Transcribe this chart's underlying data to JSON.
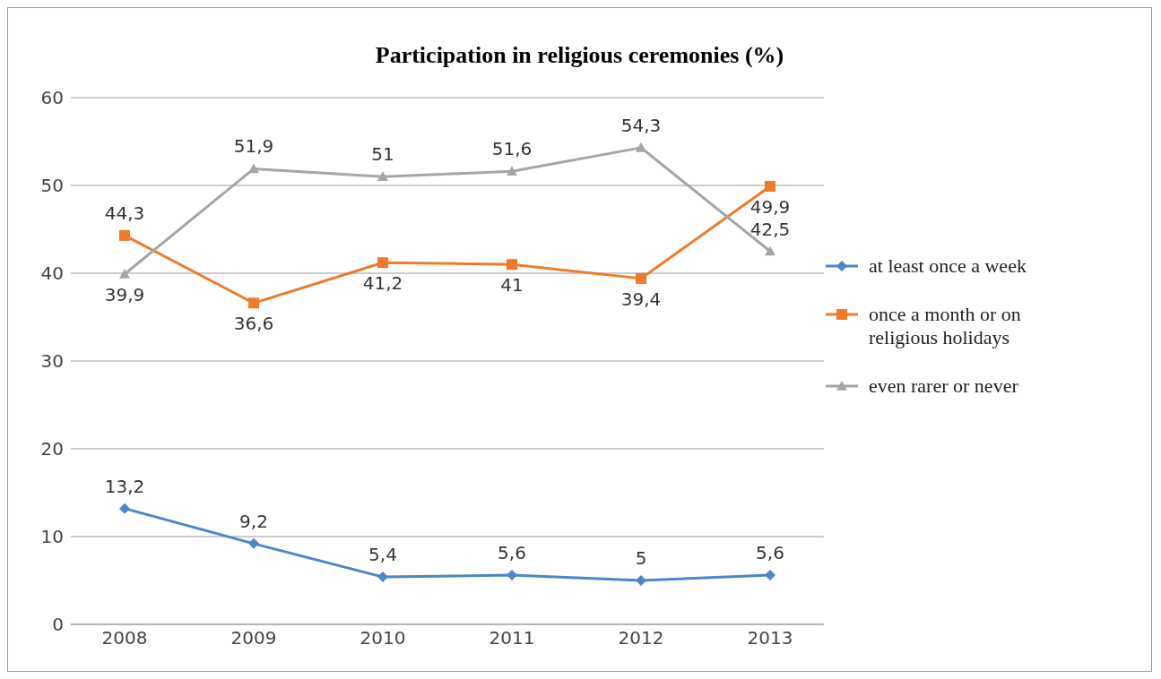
{
  "chart_data": {
    "type": "line",
    "title": "Participation in religious ceremonies (%)",
    "categories": [
      "2008",
      "2009",
      "2010",
      "2011",
      "2012",
      "2013"
    ],
    "series": [
      {
        "name": "at least once a week",
        "color": "#4a86c8",
        "marker": "diamond",
        "values": [
          13.2,
          9.2,
          5.4,
          5.6,
          5,
          5.6
        ],
        "value_labels": [
          "13,2",
          "9,2",
          "5,4",
          "5,6",
          "5",
          "5,6"
        ]
      },
      {
        "name": "once a month or on religious holidays",
        "color": "#ef7a2a",
        "marker": "square",
        "values": [
          44.3,
          36.6,
          41.2,
          41,
          39.4,
          49.9
        ],
        "value_labels": [
          "44,3",
          "36,6",
          "41,2",
          "41",
          "39,4",
          "49,9"
        ]
      },
      {
        "name": "even rarer or never",
        "color": "#a5a5a5",
        "marker": "triangle",
        "values": [
          39.9,
          51.9,
          51,
          51.6,
          54.3,
          42.5
        ],
        "value_labels": [
          "39,9",
          "51,9",
          "51",
          "51,6",
          "54,3",
          "42,5"
        ]
      }
    ],
    "ylim": [
      0,
      60
    ],
    "yticks": [
      0,
      10,
      20,
      30,
      40,
      50,
      60
    ],
    "grid": "y",
    "legend": "right"
  }
}
